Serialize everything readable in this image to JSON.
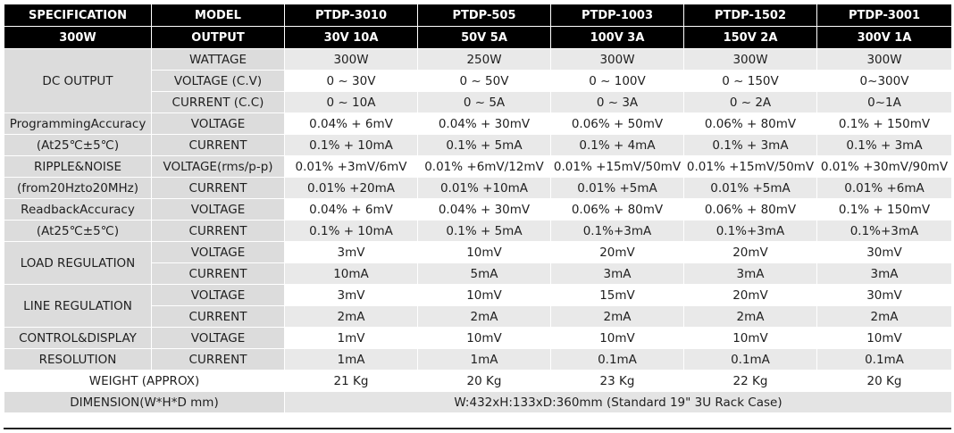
{
  "header": {
    "spec_label": "SPECIFICATION",
    "spec_power": "300W",
    "model_label": "MODEL",
    "output_label": "OUTPUT",
    "models": [
      "PTDP-3010",
      "PTDP-505",
      "PTDP-1003",
      "PTDP-1502",
      "PTDP-3001"
    ],
    "outputs": [
      "30V 10A",
      "50V 5A",
      "100V 3A",
      "150V 2A",
      "300V 1A"
    ]
  },
  "groups": {
    "dc_output": "DC OUTPUT",
    "prog_acc_1": "ProgrammingAccuracy",
    "prog_acc_2": "(At25℃±5℃)",
    "ripple_1": "RIPPLE&NOISE",
    "ripple_2": "(from20Hzto20MHz)",
    "readback_1": "ReadbackAccuracy",
    "readback_2": "(At25℃±5℃)",
    "load_reg": "LOAD REGULATION",
    "line_reg": "LINE REGULATION",
    "control_1": "CONTROL&DISPLAY",
    "control_2": "RESOLUTION",
    "weight": "WEIGHT (APPROX)",
    "dimension": "DIMENSION(W*H*D mm)"
  },
  "rows": [
    {
      "label": "WATTAGE",
      "values": [
        "300W",
        "250W",
        "300W",
        "300W",
        "300W"
      ]
    },
    {
      "label": "VOLTAGE (C.V)",
      "values": [
        "0 ~ 30V",
        "0 ~ 50V",
        "0 ~ 100V",
        "0 ~ 150V",
        "0~300V"
      ]
    },
    {
      "label": "CURRENT (C.C)",
      "values": [
        "0 ~ 10A",
        "0 ~ 5A",
        "0 ~ 3A",
        "0 ~ 2A",
        "0~1A"
      ]
    },
    {
      "label": "VOLTAGE",
      "values": [
        "0.04% + 6mV",
        "0.04% + 30mV",
        "0.06% + 50mV",
        "0.06% + 80mV",
        "0.1% + 150mV"
      ]
    },
    {
      "label": "CURRENT",
      "values": [
        "0.1% + 10mA",
        "0.1% + 5mA",
        "0.1% + 4mA",
        "0.1% + 3mA",
        "0.1% + 3mA"
      ]
    },
    {
      "label": "VOLTAGE(rms/p-p)",
      "values": [
        "0.01% +3mV/6mV",
        "0.01% +6mV/12mV",
        "0.01% +15mV/50mV",
        "0.01% +15mV/50mV",
        "0.01% +30mV/90mV"
      ]
    },
    {
      "label": "CURRENT",
      "values": [
        "0.01% +20mA",
        "0.01% +10mA",
        "0.01% +5mA",
        "0.01% +5mA",
        "0.01% +6mA"
      ]
    },
    {
      "label": "VOLTAGE",
      "values": [
        "0.04% + 6mV",
        "0.04% + 30mV",
        "0.06% + 80mV",
        "0.06% + 80mV",
        "0.1% + 150mV"
      ]
    },
    {
      "label": "CURRENT",
      "values": [
        "0.1% + 10mA",
        "0.1% + 5mA",
        "0.1%+3mA",
        "0.1%+3mA",
        "0.1%+3mA"
      ]
    },
    {
      "label": "VOLTAGE",
      "values": [
        "3mV",
        "10mV",
        "20mV",
        "20mV",
        "30mV"
      ]
    },
    {
      "label": "CURRENT",
      "values": [
        "10mA",
        "5mA",
        "3mA",
        "3mA",
        "3mA"
      ]
    },
    {
      "label": "VOLTAGE",
      "values": [
        "3mV",
        "10mV",
        "15mV",
        "20mV",
        "30mV"
      ]
    },
    {
      "label": "CURRENT",
      "values": [
        "2mA",
        "2mA",
        "2mA",
        "2mA",
        "2mA"
      ]
    },
    {
      "label": "VOLTAGE",
      "values": [
        "1mV",
        "10mV",
        "10mV",
        "10mV",
        "10mV"
      ]
    },
    {
      "label": "CURRENT",
      "values": [
        "1mA",
        "1mA",
        "0.1mA",
        "0.1mA",
        "0.1mA"
      ]
    }
  ],
  "weight_values": [
    "21 Kg",
    "20 Kg",
    "23 Kg",
    "22 Kg",
    "20 Kg"
  ],
  "dimension_value": "W:432xH:133xD:360mm (Standard 19\" 3U Rack Case)"
}
